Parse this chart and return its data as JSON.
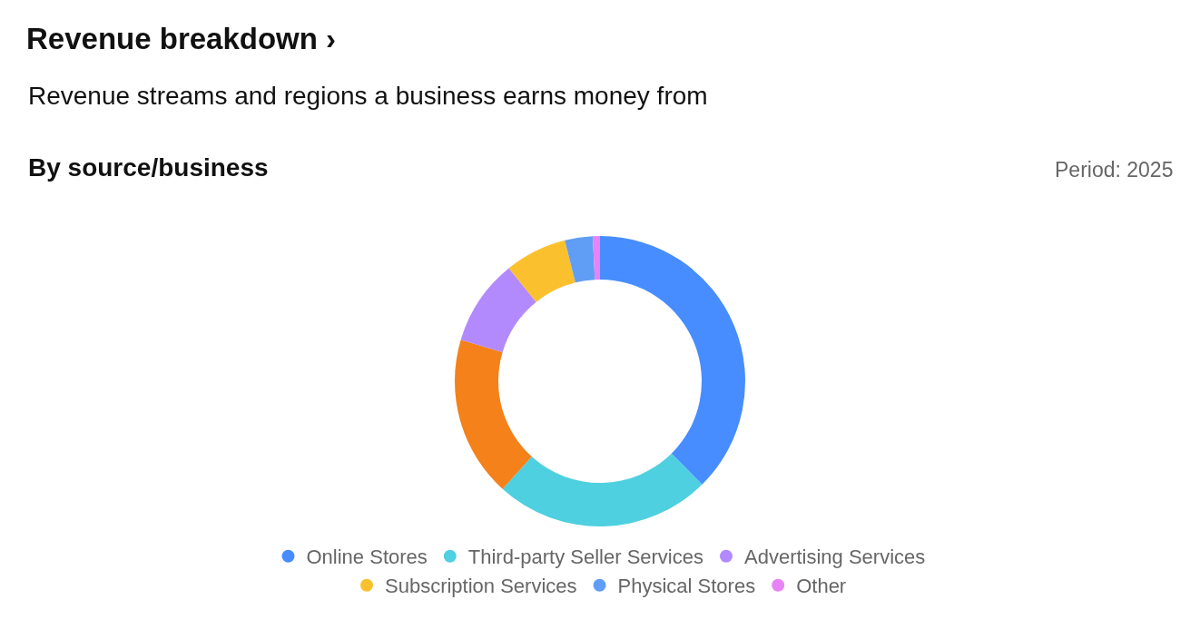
{
  "chart_data": {
    "type": "donut",
    "title": "Revenue breakdown ›",
    "subtitle": "Revenue streams and regions a business earns money from",
    "annotations": [
      "By source/business",
      "Period: 2025"
    ],
    "categories": [
      "Online Stores",
      "Third-party Seller Services",
      null,
      "Advertising Services",
      "Subscription Services",
      "Physical Stores",
      "Other"
    ],
    "values": [
      37.6,
      24.1,
      17.9,
      9.6,
      6.9,
      3.1,
      0.8
    ],
    "colors": [
      "#478dff",
      "#4ed0e0",
      "#f4811a",
      "#b28afd",
      "#fbc02d",
      "#5f9ef4",
      "#e882f7"
    ],
    "legend": "bottom"
  }
}
